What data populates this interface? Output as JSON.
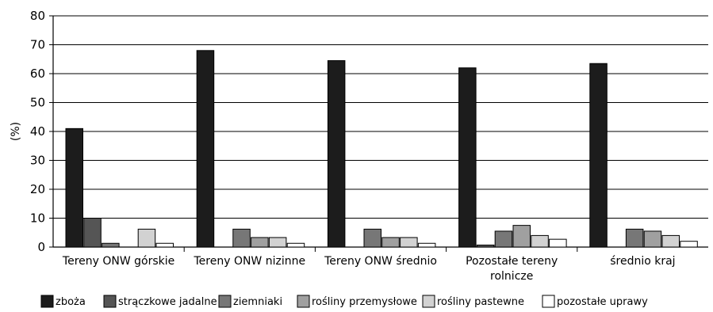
{
  "chart_data": {
    "type": "bar",
    "title": "",
    "xlabel": "",
    "ylabel": "(%)",
    "ylim": [
      0,
      80
    ],
    "yticks": [
      0,
      10,
      20,
      30,
      40,
      50,
      60,
      70,
      80
    ],
    "grid": true,
    "legend_position": "bottom",
    "categories": [
      [
        "Tereny ONW górskie"
      ],
      [
        "Tereny ONW nizinne"
      ],
      [
        "Tereny ONW średnio"
      ],
      [
        "Pozostałe tereny",
        "rolnicze"
      ],
      [
        "średnio kraj"
      ]
    ],
    "series": [
      {
        "name": "zboża",
        "color": "#1c1c1c",
        "values": [
          41.0,
          68.0,
          64.5,
          62.0,
          63.5
        ]
      },
      {
        "name": "strączkowe jadalne",
        "color": "#555555",
        "values": [
          10.0,
          0.0,
          0.0,
          0.7,
          0.0
        ]
      },
      {
        "name": "ziemniaki",
        "color": "#777777",
        "values": [
          1.3,
          6.2,
          6.2,
          5.5,
          6.2
        ]
      },
      {
        "name": "rośliny przemysłowe",
        "color": "#a0a0a0",
        "values": [
          0.0,
          3.3,
          3.3,
          7.5,
          5.5
        ]
      },
      {
        "name": "rośliny pastewne",
        "color": "#d2d2d2",
        "values": [
          6.2,
          3.3,
          3.3,
          4.0,
          4.0
        ]
      },
      {
        "name": "pozostałe uprawy",
        "color": "#ffffff",
        "values": [
          1.3,
          1.3,
          1.3,
          2.7,
          2.0
        ]
      }
    ]
  }
}
